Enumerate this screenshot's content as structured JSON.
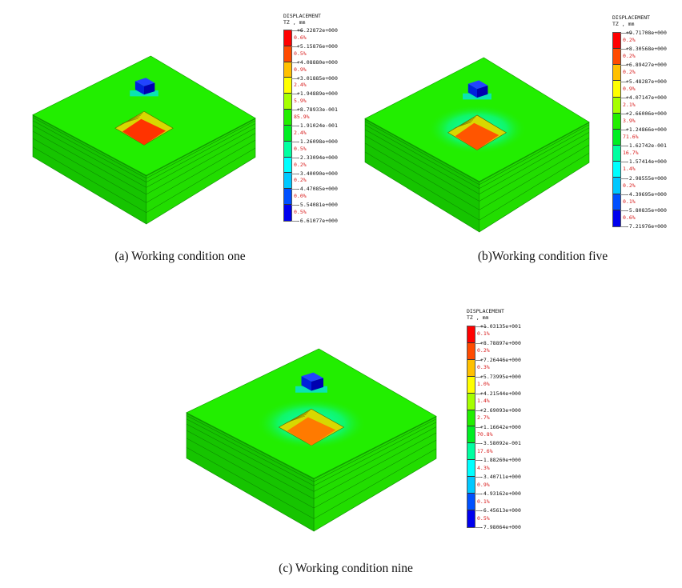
{
  "legend_title": [
    "DISPLACEMENT",
    "TZ , mm"
  ],
  "colors": [
    "#ff0000",
    "#ff4a00",
    "#ffc000",
    "#ffff00",
    "#a6ff00",
    "#22ee00",
    "#00ee22",
    "#00ffa0",
    "#00ffff",
    "#00c8ff",
    "#0050ff",
    "#0000ee"
  ],
  "panels": [
    {
      "caption": "(a) Working condition one",
      "pit_color": "#ff3300",
      "legend": {
        "values": [
          "+6.22872e+000",
          "+5.15876e+000",
          "+4.08880e+000",
          "+3.01885e+000",
          "+1.94889e+000",
          "+8.78933e-001",
          "-1.91024e-001",
          "-1.26098e+000",
          "-2.33094e+000",
          "-3.40090e+000",
          "-4.47085e+000",
          "-5.54081e+000",
          "-6.61077e+000"
        ],
        "percents": [
          "0.6%",
          "0.5%",
          "0.9%",
          "2.4%",
          "5.9%",
          "85.9%",
          "2.4%",
          "0.5%",
          "0.2%",
          "0.2%",
          "0.0%",
          "0.5%"
        ]
      }
    },
    {
      "caption": "(b)Working condition five",
      "pit_color": "#ff5500",
      "legend": {
        "values": [
          "+9.71708e+000",
          "+8.30568e+000",
          "+6.89427e+000",
          "+5.48287e+000",
          "+4.07147e+000",
          "+2.66006e+000",
          "+1.24866e+000",
          "-1.62742e-001",
          "-1.57414e+000",
          "-2.98555e+000",
          "-4.39695e+000",
          "-5.80835e+000",
          "-7.21976e+000"
        ],
        "percents": [
          "0.2%",
          "0.2%",
          "0.2%",
          "0.9%",
          "2.1%",
          "3.9%",
          "71.6%",
          "16.7%",
          "1.4%",
          "0.2%",
          "0.1%",
          "0.6%"
        ]
      }
    },
    {
      "caption": "(c) Working condition nine",
      "pit_color": "#ff7a00",
      "legend": {
        "values": [
          "+1.03135e+001",
          "+8.78897e+000",
          "+7.26446e+000",
          "+5.73995e+000",
          "+4.21544e+000",
          "+2.69093e+000",
          "+1.16642e+000",
          "-3.58092e-001",
          "-1.88260e+000",
          "-3.40711e+000",
          "-4.93162e+000",
          "-6.45613e+000",
          "-7.98064e+000"
        ],
        "percents": [
          "0.1%",
          "0.2%",
          "0.3%",
          "1.0%",
          "1.4%",
          "2.7%",
          "70.8%",
          "17.6%",
          "4.3%",
          "0.9%",
          "0.1%",
          "0.5%"
        ]
      }
    }
  ]
}
